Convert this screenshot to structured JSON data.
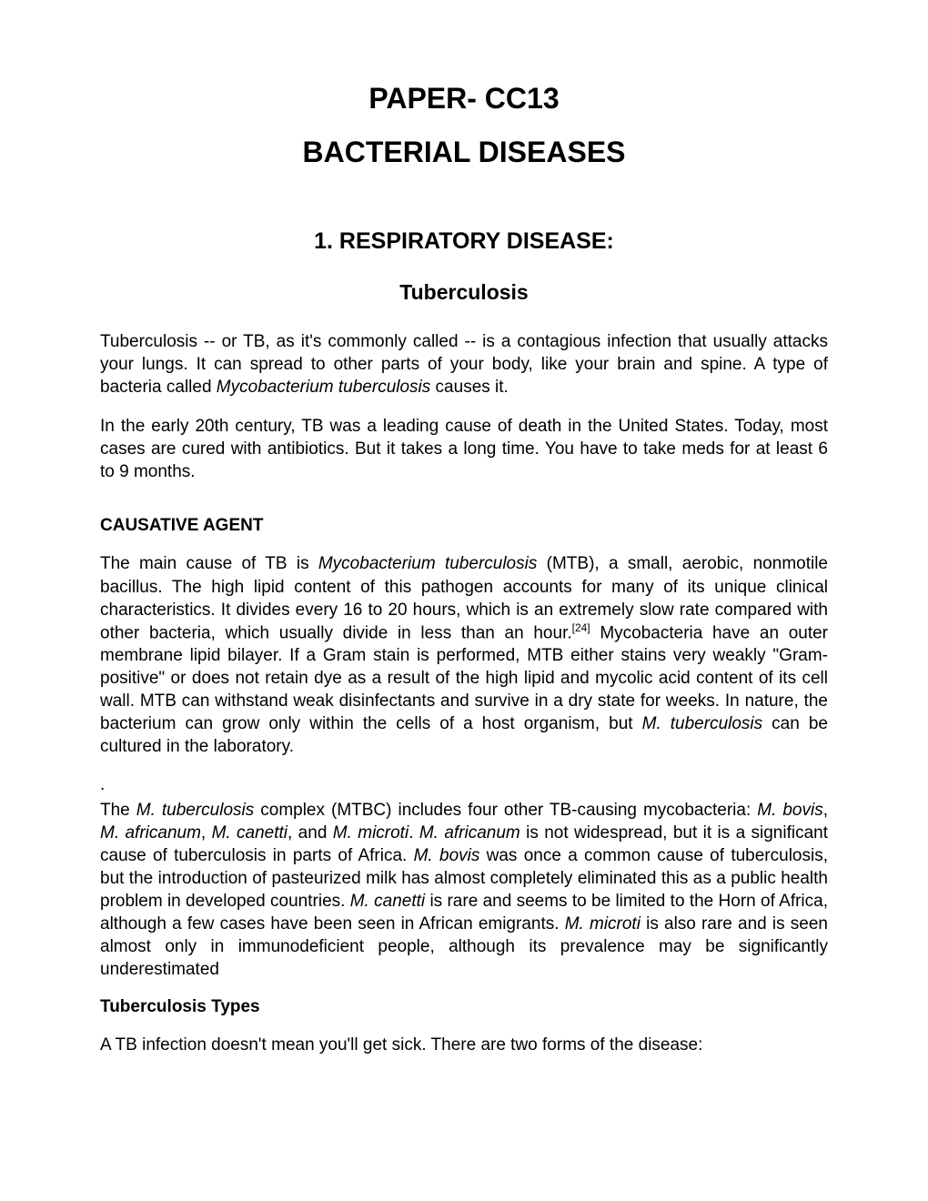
{
  "title_line1": "PAPER- CC13",
  "title_line2": "BACTERIAL DISEASES",
  "section1_heading": "1. RESPIRATORY DISEASE:",
  "section1_subheading": "Tuberculosis",
  "intro_para1_pre": "Tuberculosis -- or TB, as it's commonly called -- is a contagious infection that usually attacks your lungs. It can spread to other parts of your body, like your brain and spine. A type of bacteria called ",
  "intro_para1_italic": "Mycobacterium tuberculosis",
  "intro_para1_post": " causes it.",
  "intro_para2": "In the early 20th century, TB was a leading cause of death in the United States. Today, most cases are cured with antibiotics. But it takes a long time. You have to take meds for at least 6 to 9 months.",
  "causative_heading": "CAUSATIVE AGENT",
  "causative_para1_a": "The main cause of TB is ",
  "causative_para1_italic1": "Mycobacterium tuberculosis",
  "causative_para1_b": " (MTB), a small, aerobic, nonmotile bacillus. The high lipid content of this pathogen accounts for many of its unique clinical characteristics. It divides every 16 to 20 hours, which is an extremely slow rate compared with other bacteria, which usually divide in less than an hour.",
  "causative_para1_sup": "[24]",
  "causative_para1_c": " Mycobacteria have an outer membrane lipid bilayer. If a Gram stain is performed, MTB either stains very weakly \"Gram-positive\" or does not retain dye as a result of the high lipid and mycolic acid content of its cell wall. MTB can withstand weak disinfectants and survive in a dry state for weeks. In nature, the bacterium can grow only within the cells of a host organism, but ",
  "causative_para1_italic2": "M. tuberculosis",
  "causative_para1_d": " can be cultured in the laboratory.",
  "dot": ".",
  "causative_para2_a": "The ",
  "causative_para2_i1": "M. tuberculosis",
  "causative_para2_b": " complex (MTBC) includes four other TB-causing mycobacteria: ",
  "causative_para2_i2": "M. bovis",
  "causative_para2_c": ", ",
  "causative_para2_i3": "M. africanum",
  "causative_para2_d": ", ",
  "causative_para2_i4": "M. canetti",
  "causative_para2_e": ", and ",
  "causative_para2_i5": "M. microti",
  "causative_para2_f": ". ",
  "causative_para2_i6": "M. africanum",
  "causative_para2_g": " is not widespread, but it is a significant cause of tuberculosis in parts of Africa. ",
  "causative_para2_i7": "M. bovis",
  "causative_para2_h": " was once a common cause of tuberculosis, but the introduction of pasteurized milk has almost completely eliminated this as a public health problem in developed countries. ",
  "causative_para2_i8": "M. canetti",
  "causative_para2_i": " is rare and seems to be limited to the Horn of Africa, although a few cases have been seen in African emigrants. ",
  "causative_para2_i9": "M. microti",
  "causative_para2_j": " is also rare and is seen almost only in immunodeficient people, although its prevalence may be significantly underestimated",
  "types_heading": "Tuberculosis Types",
  "types_para": "A TB infection doesn't mean you'll get sick. There are two forms of the disease:"
}
